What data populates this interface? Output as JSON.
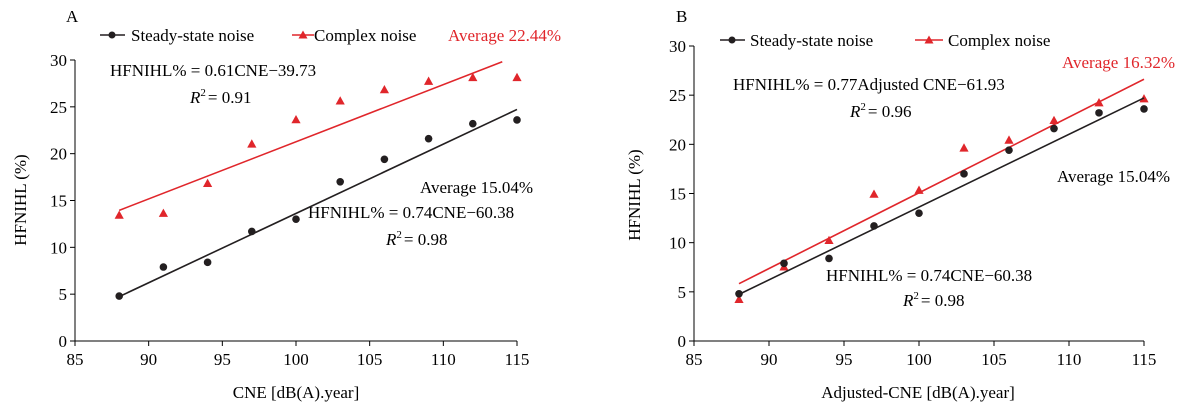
{
  "chart_data": [
    {
      "type": "scatter",
      "panel_label": "A",
      "xlabel": "CNE [dB(A).year]",
      "ylabel": "HFNIHL (%)",
      "xlim": [
        85,
        115
      ],
      "ylim": [
        0,
        30
      ],
      "xticks": [
        85,
        90,
        95,
        100,
        105,
        110,
        115
      ],
      "yticks": [
        0,
        5,
        10,
        15,
        20,
        25,
        30
      ],
      "grid": false,
      "legend_position": "top",
      "series": [
        {
          "name": "Steady-state noise",
          "marker": "circle",
          "color": "#231f20",
          "x": [
            88,
            91,
            94,
            97,
            100,
            103,
            106,
            109,
            112,
            115
          ],
          "y": [
            4.8,
            7.9,
            8.4,
            11.7,
            13.0,
            17.0,
            19.4,
            21.6,
            23.2,
            23.6
          ],
          "fit": {
            "slope": 0.74,
            "intercept": -60.38,
            "x_range": [
              88,
              115
            ]
          },
          "equation": "HFNIHL% = 0.74CNE−60.38",
          "r2": "= 0.98",
          "average": "Average 15.04%"
        },
        {
          "name": "Complex noise",
          "marker": "triangle",
          "color": "#e0262b",
          "x": [
            88,
            91,
            94,
            97,
            100,
            103,
            106,
            109,
            112,
            115
          ],
          "y": [
            13.4,
            13.6,
            16.8,
            21.0,
            23.6,
            25.6,
            26.8,
            27.7,
            28.1,
            28.1
          ],
          "fit": {
            "slope": 0.61,
            "intercept": -39.73,
            "x_range": [
              88,
              114
            ]
          },
          "equation": "HFNIHL% = 0.61CNE−39.73",
          "r2": "= 0.91",
          "average": "Average 22.44%"
        }
      ]
    },
    {
      "type": "scatter",
      "panel_label": "B",
      "xlabel": "Adjusted-CNE [dB(A).year]",
      "ylabel": "HFNIHL (%)",
      "xlim": [
        85,
        115
      ],
      "ylim": [
        0,
        30
      ],
      "xticks": [
        85,
        90,
        95,
        100,
        105,
        110,
        115
      ],
      "yticks": [
        0,
        5,
        10,
        15,
        20,
        25,
        30
      ],
      "grid": false,
      "legend_position": "top",
      "series": [
        {
          "name": "Steady-state noise",
          "marker": "circle",
          "color": "#231f20",
          "x": [
            88,
            91,
            94,
            97,
            100,
            103,
            106,
            109,
            112,
            115
          ],
          "y": [
            4.8,
            7.9,
            8.4,
            11.7,
            13.0,
            17.0,
            19.4,
            21.6,
            23.2,
            23.6
          ],
          "fit": {
            "slope": 0.74,
            "intercept": -60.38,
            "x_range": [
              88,
              115
            ]
          },
          "equation": "HFNIHL% = 0.74CNE−60.38",
          "r2": "= 0.98",
          "average": "Average 15.04%"
        },
        {
          "name": "Complex noise",
          "marker": "triangle",
          "color": "#e0262b",
          "x": [
            88,
            91,
            94,
            97,
            100,
            103,
            106,
            109,
            112,
            115
          ],
          "y": [
            4.2,
            7.5,
            10.2,
            14.9,
            15.3,
            19.6,
            20.4,
            22.4,
            24.2,
            24.6
          ],
          "fit": {
            "slope": 0.77,
            "intercept": -61.93,
            "x_range": [
              88,
              115
            ]
          },
          "equation": "HFNIHL% = 0.77Adjusted CNE−61.93",
          "r2": "= 0.96",
          "average": "Average 16.32%"
        }
      ]
    }
  ]
}
